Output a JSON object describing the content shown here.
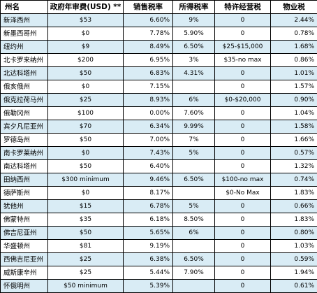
{
  "headers": [
    "州名",
    "政府年审费(USD) **",
    "销售税率",
    "所得税率",
    "特许经营税",
    "物业税"
  ],
  "rows": [
    [
      "新泽西州",
      "$53",
      "6.60%",
      "9%",
      "0",
      "2.44%"
    ],
    [
      "新墨西哥州",
      "$0",
      "7.78%",
      "5.90%",
      "0",
      "0.78%"
    ],
    [
      "纽约州",
      "$9",
      "8.49%",
      "6.50%",
      "$25-$15,000",
      "1.68%"
    ],
    [
      "北卡罗来纳州",
      "$200",
      "6.95%",
      "3%",
      "$35-no max",
      "0.86%"
    ],
    [
      "北达科塔州",
      "$50",
      "6.83%",
      "4.31%",
      "0",
      "1.01%"
    ],
    [
      "俄亥俄州",
      "$0",
      "7.15%",
      "",
      "0",
      "1.57%"
    ],
    [
      "俄克拉荷马州",
      "$25",
      "8.93%",
      "6%",
      "$0-$20,000",
      "0.90%"
    ],
    [
      "俄勒冈州",
      "$100",
      "0.00%",
      "7.60%",
      "0",
      "1.04%"
    ],
    [
      "宾夕凡尼亚州",
      "$70",
      "6.34%",
      "9.99%",
      "0",
      "1.58%"
    ],
    [
      "罗德岛州",
      "$50",
      "7.00%",
      "7%",
      "0",
      "1.66%"
    ],
    [
      "南卡罗莱纳州",
      "$0",
      "7.43%",
      "5%",
      "0",
      "0.57%"
    ],
    [
      "南达科塔州",
      "$50",
      "6.40%",
      "",
      "0",
      "1.32%"
    ],
    [
      "田纳西州",
      "$300 minimum",
      "9.46%",
      "6.50%",
      "$100-no max",
      "0.74%"
    ],
    [
      "德萨斯州",
      "$0",
      "8.17%",
      "",
      "$0-No Max",
      "1.83%"
    ],
    [
      "犹他州",
      "$15",
      "6.78%",
      "5%",
      "0",
      "0.66%"
    ],
    [
      "佛蒙特州",
      "$35",
      "6.18%",
      "8.50%",
      "0",
      "1.83%"
    ],
    [
      "佛吉尼亚州",
      "$50",
      "5.65%",
      "6%",
      "0",
      "0.80%"
    ],
    [
      "华盛顿州",
      "$81",
      "9.19%",
      "",
      "0",
      "1.03%"
    ],
    [
      "西佛吉尼亚州",
      "$25",
      "6.38%",
      "6.50%",
      "0",
      "0.59%"
    ],
    [
      "威斯康辛州",
      "$25",
      "5.44%",
      "7.90%",
      "0",
      "1.94%"
    ],
    [
      "怀俄明州",
      "$50 minimum",
      "5.39%",
      "",
      "0",
      "0.61%"
    ]
  ]
}
